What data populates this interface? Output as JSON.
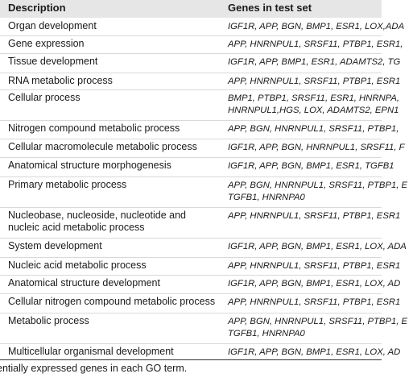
{
  "table": {
    "header": {
      "description": "Description",
      "genes": "Genes in test set"
    },
    "rows": [
      {
        "description": "Organ development",
        "genes": "IGF1R, APP, BGN, BMP1, ESR1, LOX,ADA"
      },
      {
        "description": "Gene expression",
        "genes": "APP, HNRNPUL1, SRSF11, PTBP1, ESR1,"
      },
      {
        "description": "Tissue development",
        "genes": "IGF1R, APP, BMP1, ESR1, ADAMTS2, TG"
      },
      {
        "description": "RNA metabolic process",
        "genes": "APP, HNRNPUL1, SRSF11, PTBP1, ESR1"
      },
      {
        "description": "Cellular process",
        "genes": "BMP1, PTBP1, SRSF11, ESR1, HNRNPA,\nHNRNPUL1,HGS, LOX, ADAMTS2, EPN1"
      },
      {
        "description": "Nitrogen compound metabolic process",
        "genes": "APP, BGN, HNRNPUL1, SRSF11, PTBP1,"
      },
      {
        "description": "Cellular macromolecule metabolic process",
        "genes": "IGF1R, APP, BGN, HNRNPUL1, SRSF11, F"
      },
      {
        "description": "Anatomical structure morphogenesis",
        "genes": "IGF1R, APP, BGN, BMP1, ESR1, TGFB1"
      },
      {
        "description": "Primary metabolic process",
        "genes": "APP, BGN, HNRNPUL1, SRSF11, PTBP1, E\nTGFB1, HNRNPA0"
      },
      {
        "description": "Nucleobase, nucleoside, nucleotide and\nnucleic acid metabolic process",
        "genes": "APP, HNRNPUL1, SRSF11, PTBP1, ESR1"
      },
      {
        "description": "System development",
        "genes": "IGF1R, APP, BGN, BMP1, ESR1, LOX, ADA"
      },
      {
        "description": "Nucleic acid metabolic process",
        "genes": "APP, HNRNPUL1, SRSF11, PTBP1, ESR1"
      },
      {
        "description": "Anatomical structure development",
        "genes": "IGF1R, APP, BGN, BMP1, ESR1, LOX, AD"
      },
      {
        "description": "Cellular nitrogen compound metabolic process",
        "genes": "APP, HNRNPUL1, SRSF11, PTBP1, ESR1"
      },
      {
        "description": "Metabolic process",
        "genes": "APP, BGN, HNRNPUL1, SRSF11, PTBP1, E\nTGFB1, HNRNPA0"
      },
      {
        "description": "Multicellular organismal development",
        "genes": "IGF1R, APP, BGN, BMP1, ESR1, LOX, AD"
      }
    ]
  },
  "footnote": "entially expressed genes in each GO term."
}
